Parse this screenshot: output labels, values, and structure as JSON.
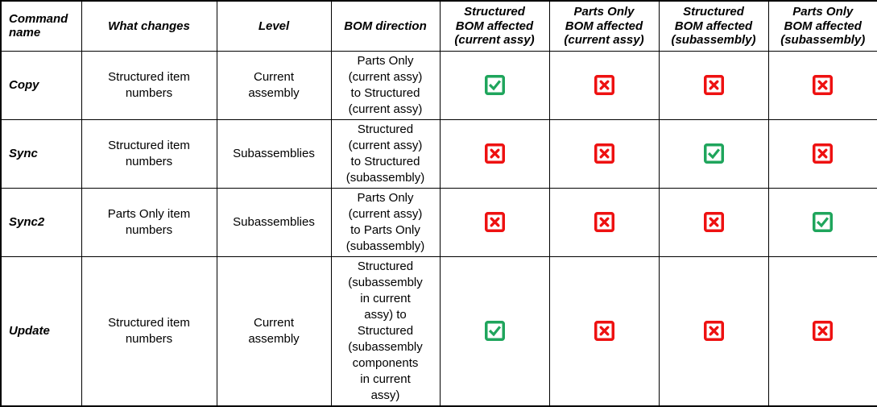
{
  "table": {
    "headers": [
      "Command\nname",
      "What changes",
      "Level",
      "BOM direction",
      "Structured\nBOM affected\n(current assy)",
      "Parts Only\nBOM affected\n(current assy)",
      "Structured\nBOM affected\n(subassembly)",
      "Parts Only\nBOM affected\n(subassembly)"
    ],
    "rows": [
      {
        "command": "Copy",
        "what_changes": "Structured item\nnumbers",
        "level": "Current\nassembly",
        "bom_direction": "Parts Only\n(current assy)\nto Structured\n(current assy)",
        "affected": [
          "yes",
          "no",
          "no",
          "no"
        ]
      },
      {
        "command": "Sync",
        "what_changes": "Structured item\nnumbers",
        "level": "Subassemblies",
        "bom_direction": "Structured\n(current assy)\nto Structured\n(subassembly)",
        "affected": [
          "no",
          "no",
          "yes",
          "no"
        ]
      },
      {
        "command": "Sync2",
        "what_changes": "Parts Only item\nnumbers",
        "level": "Subassemblies",
        "bom_direction": "Parts Only\n(current assy)\nto Parts Only\n(subassembly)",
        "affected": [
          "no",
          "no",
          "no",
          "yes"
        ]
      },
      {
        "command": "Update",
        "what_changes": "Structured item\nnumbers",
        "level": "Current\nassembly",
        "bom_direction": "Structured\n(subassembly\nin current\nassy) to\nStructured\n(subassembly\ncomponents\nin current\nassy)",
        "affected": [
          "yes",
          "no",
          "no",
          "no"
        ]
      }
    ],
    "icons": {
      "yes": {
        "name": "checked-checkbox-icon",
        "color": "#1FA55C"
      },
      "no": {
        "name": "crossed-checkbox-icon",
        "color": "#EE1111"
      }
    }
  }
}
